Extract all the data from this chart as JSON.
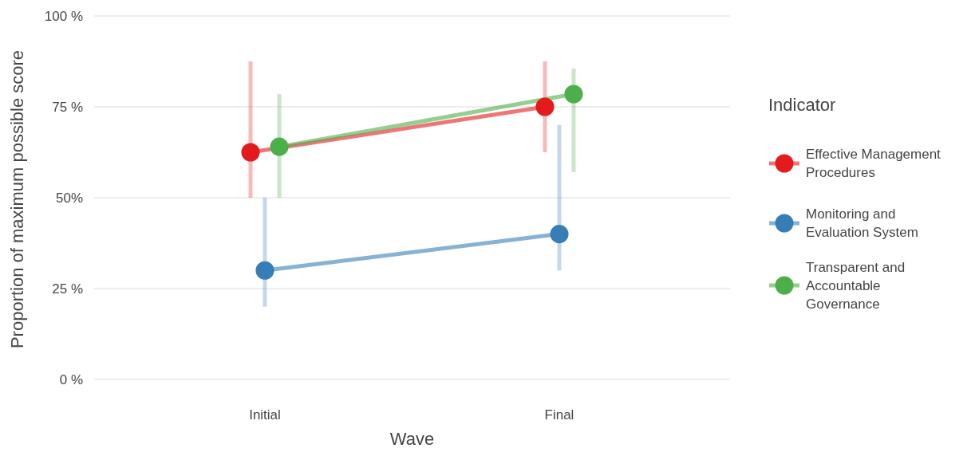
{
  "chart_data": {
    "type": "line",
    "xlabel": "Wave",
    "ylabel": "Proportion of maximum possible score",
    "legend_title": "Indicator",
    "categories": [
      "Initial",
      "Final"
    ],
    "series": [
      {
        "name": "Effective Management Procedures",
        "color": "#e41a1c",
        "values": [
          62.5,
          75
        ],
        "errors": [
          [
            50,
            87.5
          ],
          [
            62.5,
            87.5
          ]
        ]
      },
      {
        "name": "Monitoring and Evaluation System",
        "color": "#377eb8",
        "values": [
          30,
          40
        ],
        "errors": [
          [
            20,
            50
          ],
          [
            30,
            70
          ]
        ]
      },
      {
        "name": "Transparent and Accountable Governance",
        "color": "#4daf4a",
        "values": [
          64,
          78.5
        ],
        "errors": [
          [
            50,
            78.5
          ],
          [
            57,
            85.5
          ]
        ]
      }
    ],
    "ylim": [
      0,
      100
    ],
    "yticks": [
      {
        "value": 0,
        "label": "0 %"
      },
      {
        "value": 25,
        "label": "25 %"
      },
      {
        "value": 50,
        "label": "50%"
      },
      {
        "value": 75,
        "label": "75 %"
      },
      {
        "value": 100,
        "label": "100 %"
      }
    ],
    "grid": "y",
    "legend": "right",
    "marker": "circle",
    "line_style": "solid"
  }
}
